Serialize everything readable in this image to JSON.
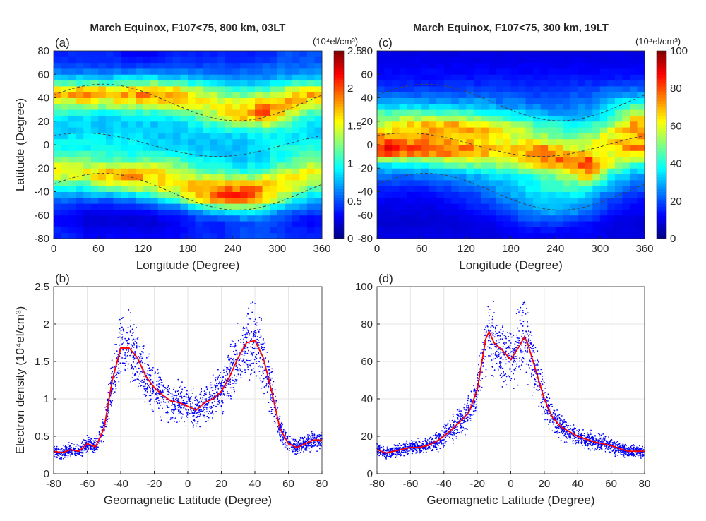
{
  "chart_data": [
    {
      "panel": "(a)",
      "type": "heatmap",
      "title": "March Equinox, F107<75, 800 km, 03LT",
      "xlabel": "Longitude (Degree)",
      "ylabel": "Latitude (Degree)",
      "xlim": [
        0,
        360
      ],
      "ylim": [
        -80,
        80
      ],
      "xticks": [
        0,
        60,
        120,
        180,
        240,
        300,
        360
      ],
      "yticks": [
        80,
        60,
        40,
        20,
        0,
        -20,
        -40,
        -60,
        -80
      ],
      "colorbar": {
        "label": "(10⁴el/cm³)",
        "range": [
          0,
          2.5
        ],
        "ticks": [
          0,
          0.5,
          1,
          1.5,
          2,
          2.5
        ],
        "colormap": "jet"
      },
      "lon": [
        15,
        45,
        75,
        105,
        135,
        165,
        195,
        225,
        255,
        285,
        315,
        345
      ],
      "lat": [
        75,
        65,
        55,
        45,
        35,
        25,
        15,
        5,
        -5,
        -15,
        -25,
        -35,
        -45,
        -55,
        -65,
        -75
      ],
      "values": [
        [
          0.4,
          0.4,
          0.4,
          0.3,
          0.3,
          0.4,
          0.4,
          0.4,
          0.4,
          0.4,
          0.5,
          0.5
        ],
        [
          0.5,
          0.5,
          0.5,
          0.5,
          0.5,
          0.5,
          0.5,
          0.5,
          0.5,
          0.6,
          0.6,
          0.6
        ],
        [
          0.9,
          0.9,
          0.9,
          1.0,
          1.0,
          0.9,
          0.8,
          0.7,
          0.7,
          0.7,
          0.8,
          0.9
        ],
        [
          1.8,
          1.9,
          1.8,
          1.9,
          2.0,
          1.8,
          1.5,
          1.2,
          1.1,
          1.2,
          1.6,
          1.8
        ],
        [
          1.4,
          1.5,
          1.4,
          1.5,
          1.5,
          1.6,
          1.6,
          1.5,
          1.6,
          1.8,
          1.8,
          1.5
        ],
        [
          0.9,
          0.9,
          0.8,
          0.9,
          0.9,
          1.0,
          1.2,
          1.5,
          1.8,
          2.0,
          1.4,
          1.0
        ],
        [
          0.8,
          0.8,
          0.8,
          0.8,
          0.8,
          0.8,
          0.9,
          1.0,
          1.1,
          1.2,
          1.0,
          0.8
        ],
        [
          0.9,
          0.9,
          0.9,
          0.9,
          0.8,
          0.8,
          0.8,
          0.8,
          0.8,
          0.9,
          0.9,
          0.9
        ],
        [
          1.0,
          1.0,
          1.0,
          0.9,
          0.9,
          0.9,
          0.8,
          0.8,
          0.8,
          0.9,
          1.0,
          1.0
        ],
        [
          1.4,
          1.3,
          1.2,
          1.2,
          1.3,
          1.2,
          1.0,
          0.9,
          0.8,
          0.9,
          1.1,
          1.3
        ],
        [
          1.6,
          1.6,
          1.8,
          1.9,
          1.7,
          1.5,
          1.3,
          1.2,
          1.1,
          1.3,
          1.5,
          1.6
        ],
        [
          1.0,
          1.1,
          1.3,
          1.5,
          1.6,
          1.6,
          1.8,
          1.9,
          1.9,
          1.8,
          1.6,
          1.3
        ],
        [
          0.6,
          0.6,
          0.6,
          0.7,
          0.9,
          1.2,
          1.7,
          2.1,
          2.1,
          1.7,
          1.2,
          0.8
        ],
        [
          0.4,
          0.3,
          0.3,
          0.3,
          0.4,
          0.5,
          0.7,
          1.0,
          1.1,
          0.9,
          0.6,
          0.5
        ],
        [
          0.3,
          0.2,
          0.2,
          0.2,
          0.2,
          0.3,
          0.4,
          0.4,
          0.5,
          0.5,
          0.4,
          0.3
        ],
        [
          0.4,
          0.3,
          0.3,
          0.3,
          0.3,
          0.3,
          0.4,
          0.4,
          0.5,
          0.5,
          0.4,
          0.4
        ]
      ]
    },
    {
      "panel": "(c)",
      "type": "heatmap",
      "title": "March Equinox, F107<75, 300 km, 19LT",
      "xlabel": "Longitude (Degree)",
      "ylabel": "",
      "xlim": [
        0,
        360
      ],
      "ylim": [
        -80,
        80
      ],
      "xticks": [
        0,
        60,
        120,
        180,
        240,
        300,
        360
      ],
      "yticks": [
        80,
        60,
        40,
        20,
        0,
        -20,
        -40,
        -60,
        -80
      ],
      "colorbar": {
        "label": "(10⁴el/cm³)",
        "range": [
          0,
          100
        ],
        "ticks": [
          0,
          20,
          40,
          60,
          80,
          100
        ],
        "colormap": "jet"
      },
      "lon": [
        15,
        45,
        75,
        105,
        135,
        165,
        195,
        225,
        255,
        285,
        315,
        345
      ],
      "lat": [
        75,
        65,
        55,
        45,
        35,
        25,
        15,
        5,
        -5,
        -15,
        -25,
        -35,
        -45,
        -55,
        -65,
        -75
      ],
      "values": [
        [
          10,
          10,
          10,
          10,
          10,
          10,
          10,
          10,
          10,
          10,
          10,
          10
        ],
        [
          12,
          12,
          12,
          12,
          12,
          12,
          12,
          12,
          12,
          12,
          12,
          12
        ],
        [
          14,
          14,
          14,
          15,
          15,
          15,
          15,
          15,
          15,
          15,
          15,
          15
        ],
        [
          20,
          20,
          20,
          20,
          20,
          20,
          18,
          18,
          20,
          20,
          25,
          25
        ],
        [
          30,
          30,
          28,
          28,
          30,
          25,
          25,
          22,
          22,
          25,
          35,
          40
        ],
        [
          50,
          50,
          50,
          50,
          45,
          40,
          35,
          30,
          30,
          30,
          40,
          60
        ],
        [
          60,
          70,
          75,
          75,
          70,
          65,
          55,
          45,
          40,
          40,
          55,
          75
        ],
        [
          75,
          70,
          70,
          65,
          65,
          60,
          60,
          55,
          50,
          55,
          65,
          70
        ],
        [
          90,
          85,
          80,
          80,
          75,
          65,
          70,
          80,
          65,
          60,
          60,
          75
        ],
        [
          40,
          40,
          45,
          50,
          55,
          55,
          65,
          75,
          80,
          85,
          60,
          45
        ],
        [
          25,
          25,
          25,
          30,
          30,
          35,
          40,
          45,
          55,
          75,
          40,
          30
        ],
        [
          18,
          15,
          18,
          20,
          25,
          30,
          35,
          40,
          45,
          40,
          30,
          22
        ],
        [
          12,
          12,
          12,
          15,
          18,
          25,
          30,
          35,
          35,
          30,
          20,
          15
        ],
        [
          10,
          10,
          10,
          12,
          15,
          18,
          25,
          30,
          30,
          25,
          15,
          12
        ],
        [
          8,
          8,
          8,
          8,
          10,
          12,
          18,
          20,
          18,
          15,
          10,
          8
        ],
        [
          10,
          10,
          10,
          10,
          10,
          10,
          12,
          12,
          12,
          12,
          10,
          10
        ]
      ]
    },
    {
      "panel": "(b)",
      "type": "scatter",
      "xlabel": "Geomagnetic Latitude (Degree)",
      "ylabel": "Electron density (10⁴el/cm³)",
      "xlim": [
        -80,
        80
      ],
      "ylim": [
        0,
        2.5
      ],
      "xticks": [
        -80,
        -60,
        -40,
        -20,
        0,
        20,
        40,
        60,
        80
      ],
      "yticks": [
        0,
        0.5,
        1,
        1.5,
        2,
        2.5
      ],
      "grid": true,
      "point_color": "#0000ff",
      "line_color": "#ff0000",
      "median_line": {
        "x": [
          -80,
          -75,
          -70,
          -65,
          -60,
          -55,
          -50,
          -45,
          -40,
          -35,
          -30,
          -25,
          -20,
          -15,
          -10,
          -5,
          0,
          5,
          10,
          15,
          20,
          25,
          30,
          35,
          40,
          45,
          50,
          55,
          60,
          65,
          70,
          75,
          80
        ],
        "y": [
          0.3,
          0.28,
          0.32,
          0.3,
          0.4,
          0.36,
          0.6,
          1.25,
          1.68,
          1.68,
          1.55,
          1.3,
          1.15,
          1.05,
          0.97,
          0.95,
          0.9,
          0.85,
          0.95,
          1.0,
          1.1,
          1.3,
          1.55,
          1.75,
          1.78,
          1.55,
          1.1,
          0.6,
          0.4,
          0.35,
          0.4,
          0.45,
          0.45
        ]
      }
    },
    {
      "panel": "(d)",
      "type": "scatter",
      "xlabel": "Geomagnetic Latitude (Degree)",
      "ylabel": "",
      "xlim": [
        -80,
        80
      ],
      "ylim": [
        0,
        100
      ],
      "xticks": [
        -80,
        -60,
        -40,
        -20,
        0,
        20,
        40,
        60,
        80
      ],
      "yticks": [
        0,
        20,
        40,
        60,
        80,
        100
      ],
      "grid": true,
      "point_color": "#0000ff",
      "line_color": "#ff0000",
      "median_line": {
        "x": [
          -80,
          -75,
          -70,
          -65,
          -60,
          -55,
          -50,
          -45,
          -40,
          -35,
          -30,
          -25,
          -20,
          -15,
          -13,
          -10,
          -5,
          0,
          5,
          8,
          10,
          15,
          20,
          25,
          30,
          40,
          50,
          60,
          70,
          80
        ],
        "y": [
          13,
          11,
          12,
          13,
          14,
          14,
          15,
          17,
          20,
          24,
          28,
          33,
          45,
          72,
          76,
          70,
          66,
          61,
          68,
          73,
          70,
          55,
          40,
          30,
          25,
          20,
          17,
          15,
          12,
          12
        ]
      }
    }
  ]
}
